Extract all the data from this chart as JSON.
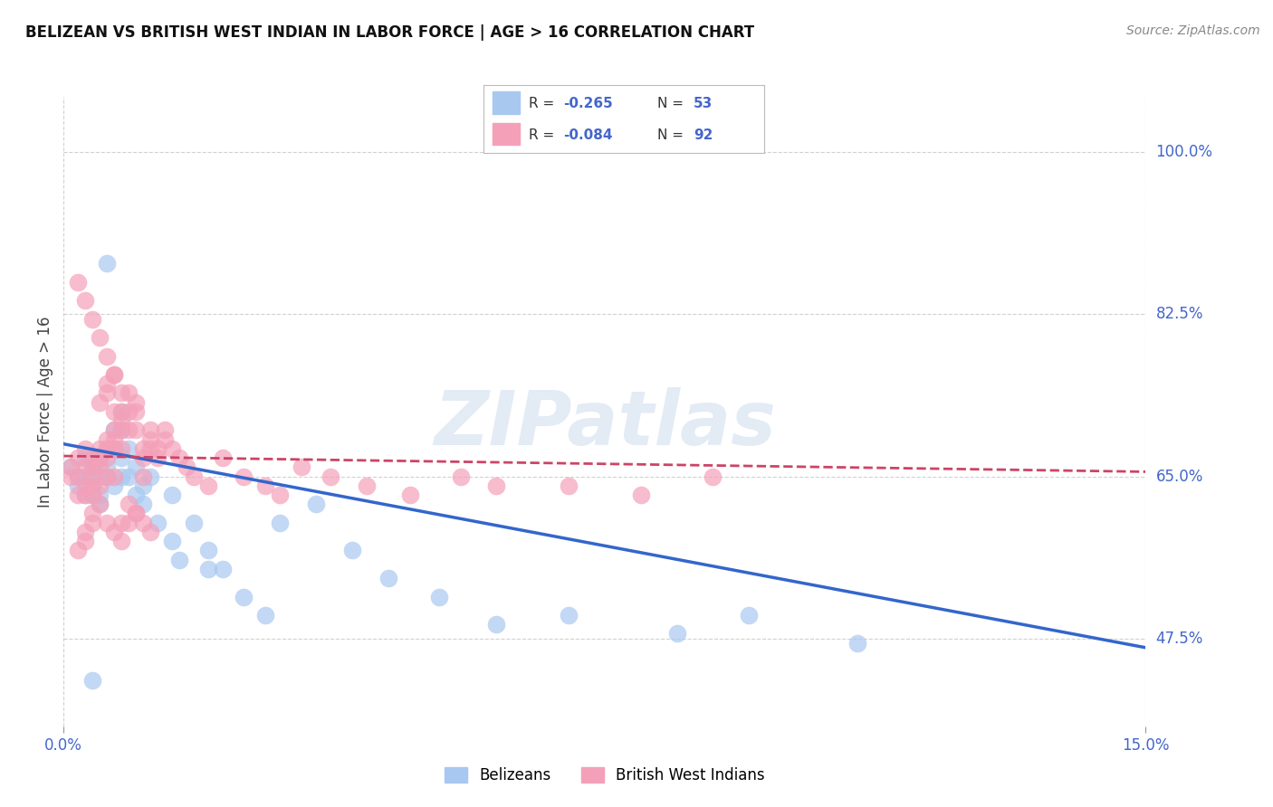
{
  "title": "BELIZEAN VS BRITISH WEST INDIAN IN LABOR FORCE | AGE > 16 CORRELATION CHART",
  "source": "Source: ZipAtlas.com",
  "ylabel_label": "In Labor Force | Age > 16",
  "xmin": 0.0,
  "xmax": 0.15,
  "ymin": 0.38,
  "ymax": 1.06,
  "y_tick_vals": [
    0.475,
    0.65,
    0.825,
    1.0
  ],
  "y_tick_labels": [
    "47.5%",
    "65.0%",
    "82.5%",
    "100.0%"
  ],
  "x_tick_vals": [
    0.0,
    0.15
  ],
  "x_tick_labels": [
    "0.0%",
    "15.0%"
  ],
  "legend_R_blue": "-0.265",
  "legend_N_blue": "53",
  "legend_R_pink": "-0.084",
  "legend_N_pink": "92",
  "legend_label_blue": "Belizeans",
  "legend_label_pink": "British West Indians",
  "color_blue": "#A8C8F0",
  "color_pink": "#F4A0B8",
  "color_line_blue": "#3366CC",
  "color_line_pink": "#CC4466",
  "color_axis_values": "#4466CC",
  "watermark_text": "ZIPatlas",
  "blue_line_x0": 0.0,
  "blue_line_x1": 0.15,
  "blue_line_y0": 0.685,
  "blue_line_y1": 0.465,
  "pink_line_x0": 0.0,
  "pink_line_x1": 0.15,
  "pink_line_y0": 0.672,
  "pink_line_y1": 0.655,
  "blue_points_x": [
    0.001,
    0.002,
    0.002,
    0.003,
    0.003,
    0.003,
    0.004,
    0.004,
    0.004,
    0.004,
    0.005,
    0.005,
    0.005,
    0.005,
    0.006,
    0.006,
    0.006,
    0.007,
    0.007,
    0.007,
    0.008,
    0.008,
    0.008,
    0.009,
    0.009,
    0.01,
    0.01,
    0.011,
    0.011,
    0.012,
    0.013,
    0.015,
    0.016,
    0.018,
    0.02,
    0.022,
    0.025,
    0.028,
    0.03,
    0.035,
    0.04,
    0.045,
    0.052,
    0.06,
    0.07,
    0.085,
    0.095,
    0.11,
    0.02,
    0.015,
    0.008,
    0.006,
    0.004
  ],
  "blue_points_y": [
    0.66,
    0.65,
    0.64,
    0.67,
    0.65,
    0.63,
    0.66,
    0.64,
    0.65,
    0.63,
    0.67,
    0.65,
    0.63,
    0.62,
    0.68,
    0.66,
    0.65,
    0.7,
    0.68,
    0.64,
    0.72,
    0.7,
    0.65,
    0.68,
    0.65,
    0.66,
    0.63,
    0.64,
    0.62,
    0.65,
    0.6,
    0.58,
    0.56,
    0.6,
    0.57,
    0.55,
    0.52,
    0.5,
    0.6,
    0.62,
    0.57,
    0.54,
    0.52,
    0.49,
    0.5,
    0.48,
    0.5,
    0.47,
    0.55,
    0.63,
    0.67,
    0.88,
    0.43
  ],
  "pink_points_x": [
    0.001,
    0.001,
    0.002,
    0.002,
    0.002,
    0.003,
    0.003,
    0.003,
    0.003,
    0.004,
    0.004,
    0.004,
    0.004,
    0.004,
    0.005,
    0.005,
    0.005,
    0.005,
    0.006,
    0.006,
    0.006,
    0.006,
    0.007,
    0.007,
    0.007,
    0.007,
    0.008,
    0.008,
    0.008,
    0.009,
    0.009,
    0.009,
    0.01,
    0.01,
    0.01,
    0.011,
    0.011,
    0.011,
    0.012,
    0.012,
    0.012,
    0.013,
    0.013,
    0.014,
    0.014,
    0.015,
    0.016,
    0.017,
    0.018,
    0.02,
    0.022,
    0.025,
    0.028,
    0.03,
    0.033,
    0.037,
    0.042,
    0.048,
    0.055,
    0.06,
    0.07,
    0.08,
    0.09,
    0.008,
    0.009,
    0.01,
    0.006,
    0.007,
    0.005,
    0.004,
    0.003,
    0.002,
    0.005,
    0.006,
    0.007,
    0.008,
    0.004,
    0.003,
    0.002,
    0.003,
    0.004,
    0.005,
    0.006,
    0.007,
    0.008,
    0.009,
    0.01,
    0.011,
    0.012,
    0.006,
    0.007,
    0.008
  ],
  "pink_points_y": [
    0.66,
    0.65,
    0.67,
    0.65,
    0.63,
    0.68,
    0.66,
    0.64,
    0.63,
    0.67,
    0.66,
    0.65,
    0.64,
    0.63,
    0.68,
    0.67,
    0.66,
    0.64,
    0.69,
    0.68,
    0.67,
    0.65,
    0.7,
    0.69,
    0.68,
    0.65,
    0.72,
    0.7,
    0.68,
    0.74,
    0.72,
    0.7,
    0.73,
    0.72,
    0.7,
    0.68,
    0.67,
    0.65,
    0.7,
    0.69,
    0.68,
    0.68,
    0.67,
    0.7,
    0.69,
    0.68,
    0.67,
    0.66,
    0.65,
    0.64,
    0.67,
    0.65,
    0.64,
    0.63,
    0.66,
    0.65,
    0.64,
    0.63,
    0.65,
    0.64,
    0.64,
    0.63,
    0.65,
    0.6,
    0.62,
    0.61,
    0.78,
    0.76,
    0.8,
    0.82,
    0.84,
    0.86,
    0.73,
    0.74,
    0.72,
    0.71,
    0.6,
    0.58,
    0.57,
    0.59,
    0.61,
    0.62,
    0.6,
    0.59,
    0.58,
    0.6,
    0.61,
    0.6,
    0.59,
    0.75,
    0.76,
    0.74
  ],
  "grid_color": "#CCCCCC",
  "bg_color": "#FFFFFF"
}
